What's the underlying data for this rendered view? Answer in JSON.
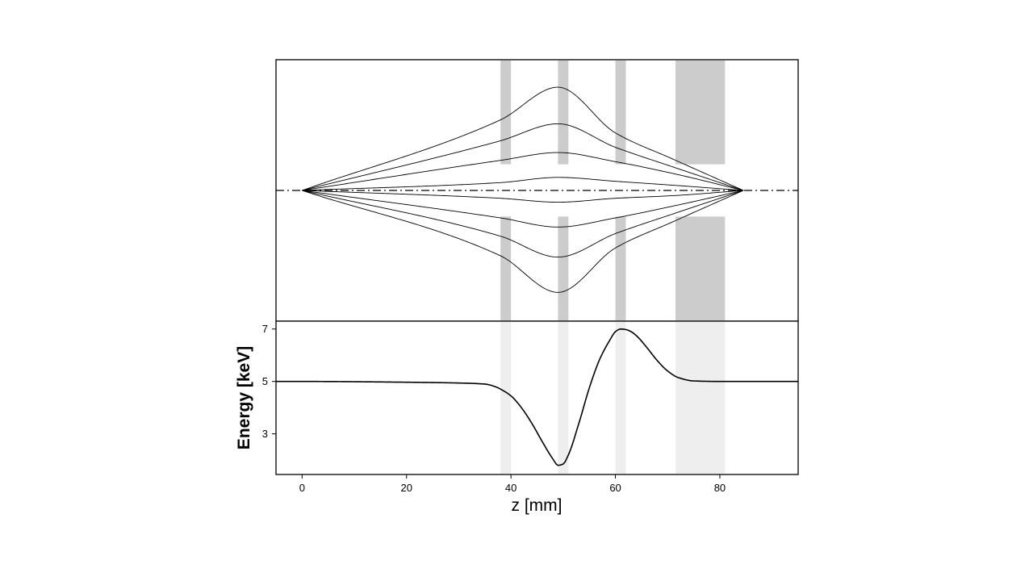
{
  "chart_data": [
    {
      "type": "line",
      "panel": "trajectories",
      "xlim": [
        -5,
        95
      ],
      "ylim": [
        -1,
        1
      ],
      "axis_line": "dash-dot",
      "electrodes": [
        {
          "z_start": 38,
          "z_end": 40,
          "top_color": "#cccccc",
          "bottom_color": "#cccccc"
        },
        {
          "z_start": 49,
          "z_end": 51,
          "top_color": "#cccccc",
          "bottom_color": "#cccccc"
        },
        {
          "z_start": 60,
          "z_end": 62,
          "top_color": "#cccccc",
          "bottom_color": "#cccccc"
        },
        {
          "z_start": 71.5,
          "z_end": 81,
          "top_color": "#cccccc",
          "bottom_color": "#cccccc"
        }
      ],
      "electrode_gap": 0.2,
      "series": [
        {
          "values_z": [
            0,
            38,
            49,
            60,
            71,
            84.5
          ],
          "values_r": [
            0,
            0.54,
            0.79,
            0.44,
            0.24,
            0
          ]
        },
        {
          "values_z": [
            0,
            38,
            49,
            60,
            71,
            84.5
          ],
          "values_r": [
            0,
            0.38,
            0.51,
            0.33,
            0.18,
            0
          ]
        },
        {
          "values_z": [
            0,
            38,
            49,
            60,
            71,
            84.5
          ],
          "values_r": [
            0,
            0.23,
            0.29,
            0.22,
            0.13,
            0
          ]
        },
        {
          "values_z": [
            0,
            38,
            49,
            60,
            71,
            84.5
          ],
          "values_r": [
            0,
            0.06,
            0.1,
            0.07,
            0.04,
            0
          ]
        },
        {
          "values_z": [
            0,
            38,
            49,
            60,
            71,
            84.5
          ],
          "values_r": [
            0,
            -0.06,
            -0.09,
            -0.06,
            -0.04,
            0
          ]
        },
        {
          "values_z": [
            0,
            38,
            49,
            60,
            71,
            84.5
          ],
          "values_r": [
            0,
            -0.21,
            -0.28,
            -0.21,
            -0.12,
            0
          ]
        },
        {
          "values_z": [
            0,
            38,
            49,
            60,
            71,
            84.5
          ],
          "values_r": [
            0,
            -0.35,
            -0.51,
            -0.33,
            -0.18,
            0
          ]
        },
        {
          "values_z": [
            0,
            38,
            49,
            60,
            71,
            84.5
          ],
          "values_r": [
            0,
            -0.5,
            -0.78,
            -0.44,
            -0.24,
            0
          ]
        }
      ]
    },
    {
      "type": "line",
      "panel": "energy",
      "xlabel": "z [mm]",
      "ylabel": "Energy [keV]",
      "xlim": [
        -5,
        95
      ],
      "ylim": [
        1.45,
        7.3
      ],
      "xticks": [
        0,
        20,
        40,
        60,
        80
      ],
      "yticks": [
        3,
        5,
        7
      ],
      "band_color": "#eeeeee",
      "series": [
        {
          "x": [
            -5,
            0,
            20,
            30,
            35,
            37,
            38.5,
            40,
            42,
            44,
            46,
            48,
            49,
            50,
            51,
            53,
            55,
            57,
            59,
            60,
            61,
            62,
            63,
            64,
            66,
            68,
            70,
            72,
            75,
            80,
            85,
            95
          ],
          "y": [
            5.0,
            5.0,
            4.97,
            4.94,
            4.9,
            4.8,
            4.65,
            4.45,
            4.0,
            3.4,
            2.7,
            2.05,
            1.8,
            1.85,
            2.2,
            3.4,
            4.75,
            5.85,
            6.6,
            6.9,
            7.0,
            6.98,
            6.9,
            6.75,
            6.3,
            5.8,
            5.4,
            5.15,
            5.02,
            5.0,
            5.0,
            5.0
          ]
        }
      ]
    }
  ]
}
